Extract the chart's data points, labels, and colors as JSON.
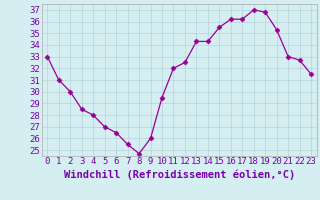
{
  "x": [
    0,
    1,
    2,
    3,
    4,
    5,
    6,
    7,
    8,
    9,
    10,
    11,
    12,
    13,
    14,
    15,
    16,
    17,
    18,
    19,
    20,
    21,
    22,
    23
  ],
  "y": [
    33,
    31,
    30,
    28.5,
    28,
    27,
    26.5,
    25.5,
    24.7,
    26,
    29.5,
    32,
    32.5,
    34.3,
    34.3,
    35.5,
    36.2,
    36.2,
    37.0,
    36.8,
    35.3,
    33,
    32.7,
    31.5
  ],
  "line_color": "#990099",
  "marker": "D",
  "marker_size": 2.5,
  "bg_color": "#d5eef2",
  "grid_color": "#b8d4d8",
  "xlabel": "Windchill (Refroidissement éolien,°C)",
  "ylabel_ticks": [
    25,
    26,
    27,
    28,
    29,
    30,
    31,
    32,
    33,
    34,
    35,
    36,
    37
  ],
  "xlim": [
    -0.5,
    23.5
  ],
  "ylim": [
    24.5,
    37.5
  ],
  "xlabel_fontsize": 7.5,
  "tick_fontsize": 6.5
}
